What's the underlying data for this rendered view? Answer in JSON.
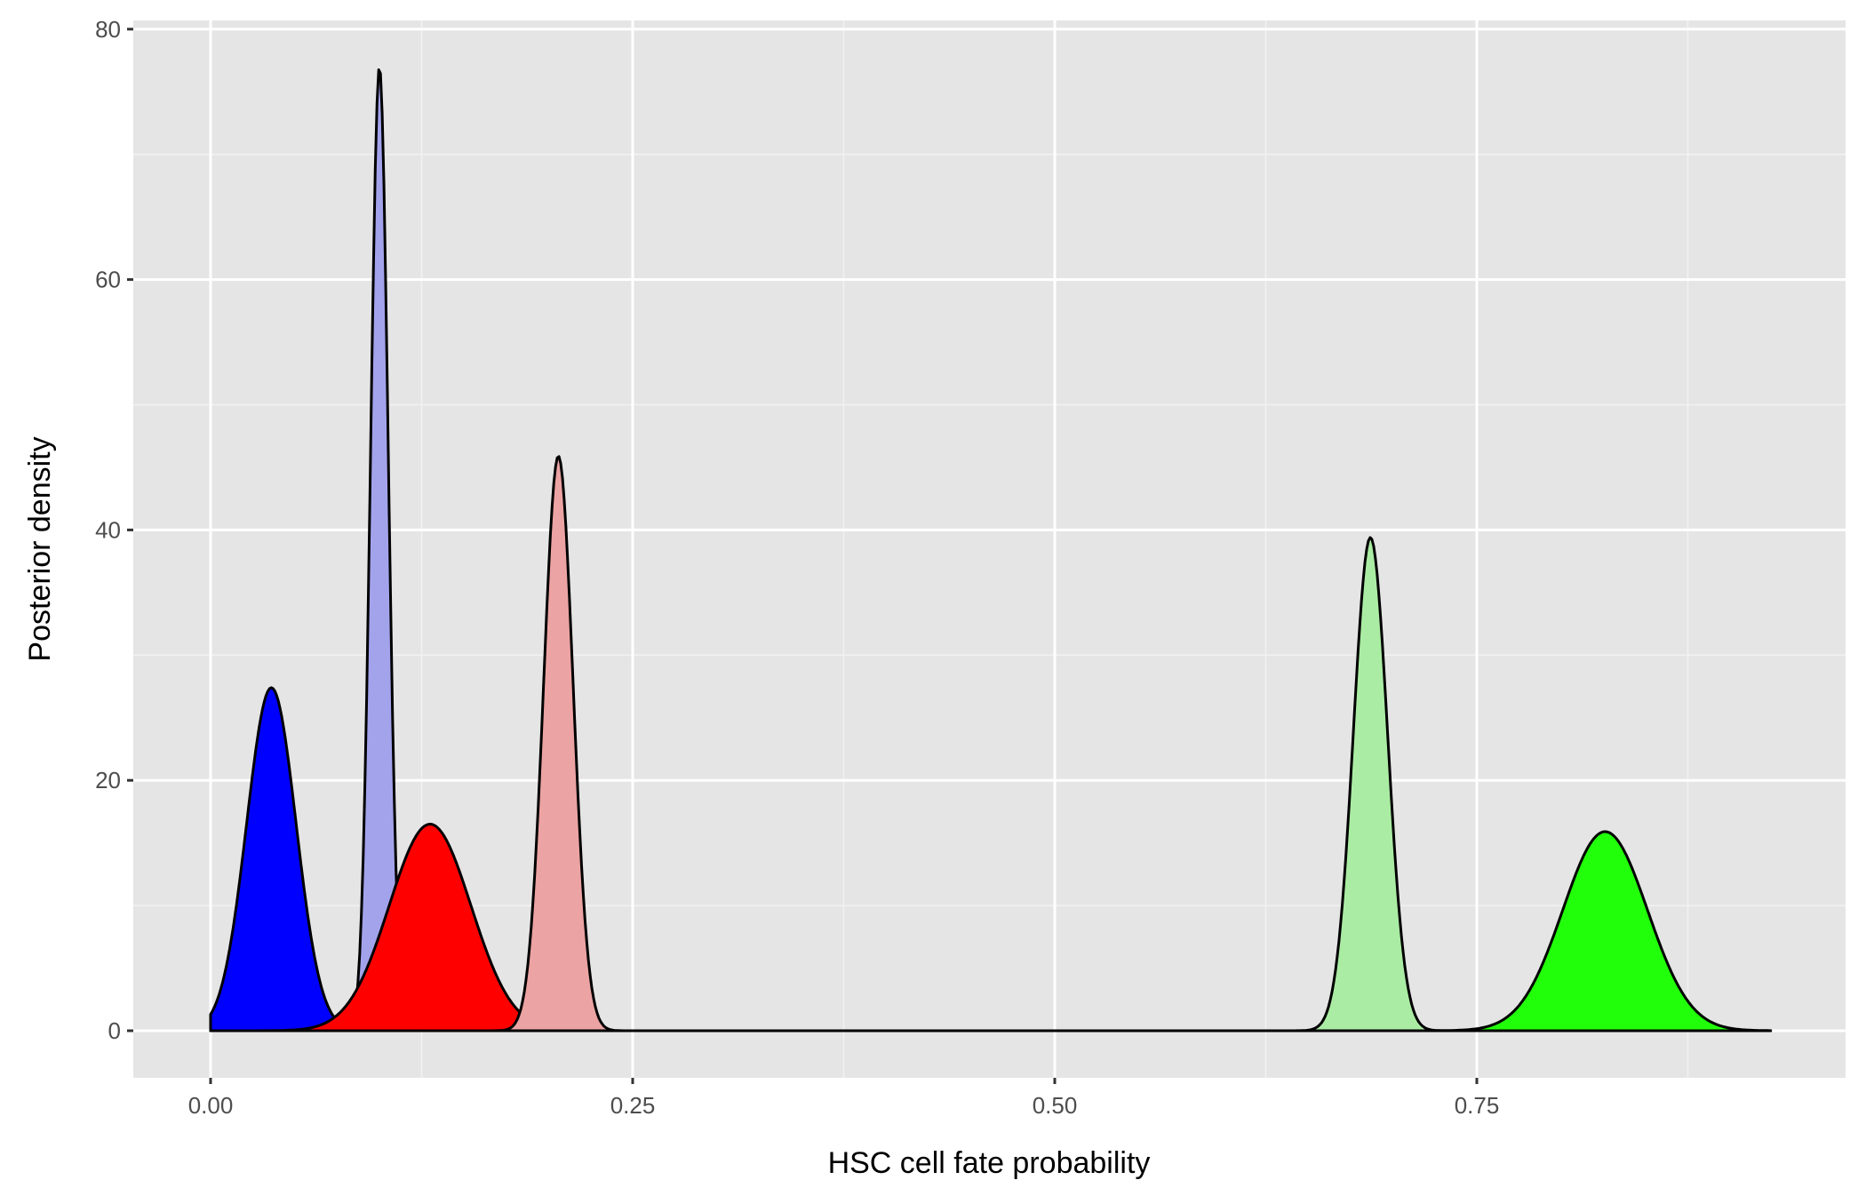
{
  "chart_data": {
    "type": "area",
    "subtype": "density",
    "title": "",
    "xlabel": "HSC cell fate probability",
    "ylabel": "Posterior density",
    "xlim": [
      -0.0925,
      0.9725
    ],
    "ylim": [
      -3.8,
      80.7
    ],
    "x_ticks": [
      0.0,
      0.25,
      0.5,
      0.75
    ],
    "x_tick_labels": [
      "0.00",
      "0.25",
      "0.50",
      "0.75"
    ],
    "y_ticks": [
      0,
      20,
      40,
      60,
      80
    ],
    "y_tick_labels": [
      "0",
      "20",
      "40",
      "60",
      "80"
    ],
    "grid": true,
    "legend": "none",
    "x_range_of_curves": [
      0.0,
      0.924
    ],
    "series": [
      {
        "name": "blue",
        "fill": "#0000ff",
        "opacity": 1.0,
        "mode": 0.036,
        "peak": 27.4,
        "sd": 0.0146
      },
      {
        "name": "light-blue",
        "fill": "#a3a3ec",
        "opacity": 1.0,
        "mode": 0.1,
        "peak": 77.0,
        "sd": 0.0052
      },
      {
        "name": "red",
        "fill": "#ff0000",
        "opacity": 1.0,
        "mode": 0.13,
        "peak": 16.5,
        "sd": 0.0242
      },
      {
        "name": "light-red",
        "fill": "#eca3a3",
        "opacity": 1.0,
        "mode": 0.206,
        "peak": 45.9,
        "sd": 0.0087
      },
      {
        "name": "light-green",
        "fill": "#aaeca3",
        "opacity": 1.0,
        "mode": 0.687,
        "peak": 39.4,
        "sd": 0.0101
      },
      {
        "name": "green",
        "fill": "#22ff0a",
        "opacity": 1.0,
        "mode": 0.826,
        "peak": 15.9,
        "sd": 0.0251
      }
    ]
  },
  "style": {
    "panel_bg": "#e5e5e5",
    "grid_major": "#ffffff",
    "grid_minor": "#f2f2f2",
    "outline": "#000000",
    "tick_color": "#333333"
  }
}
